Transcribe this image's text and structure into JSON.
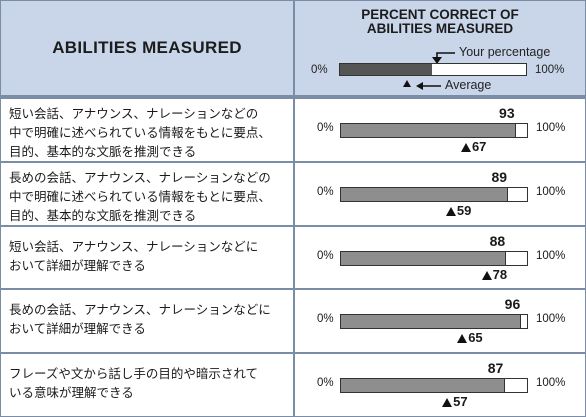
{
  "header": {
    "left_title": "ABILITIES MEASURED",
    "right_title_line1": "PERCENT CORRECT OF",
    "right_title_line2": "ABILITIES MEASURED"
  },
  "legend": {
    "min_label": "0%",
    "max_label": "100%",
    "your_percentage_label": "Your percentage",
    "average_label": "Average",
    "sample_fill": 0.49,
    "sample_marker": 0.36
  },
  "colors": {
    "header_bg": "#c9d6ea",
    "border": "#7a8ca6",
    "bar_fill": "#8e8e8e",
    "legend_fill": "#555555"
  },
  "rows": [
    {
      "desc_lines": [
        "短い会話、アナウンス、ナレーションなどの",
        "中で明確に述べられている情報をもとに要点、",
        "目的、基本的な文脈を推測できる"
      ]
    },
    {
      "desc_lines": [
        "長めの会話、アナウンス、ナレーションなどの",
        "中で明確に述べられている情報をもとに要点、",
        "目的、基本的な文脈を推測できる"
      ]
    },
    {
      "desc_lines": [
        "短い会話、アナウンス、ナレーションなどに",
        "おいて詳細が理解できる"
      ]
    },
    {
      "desc_lines": [
        "長めの会話、アナウンス、ナレーションなどに",
        "おいて詳細が理解できる"
      ]
    },
    {
      "desc_lines": [
        "フレーズや文から話し手の目的や暗示されて",
        "いる意味が理解できる"
      ]
    }
  ],
  "axis": {
    "min_label": "0%",
    "max_label": "100%"
  },
  "chart_data": {
    "type": "bar",
    "categories": [
      "短い会話、アナウンス、ナレーションなどの中で明確に述べられている情報をもとに要点、目的、基本的な文脈を推測できる",
      "長めの会話、アナウンス、ナレーションなどの中で明確に述べられている情報をもとに要点、目的、基本的な文脈を推測できる",
      "短い会話、アナウンス、ナレーションなどにおいて詳細が理解できる",
      "長めの会話、アナウンス、ナレーションなどにおいて詳細が理解できる",
      "フレーズや文から話し手の目的や暗示されている意味が理解できる"
    ],
    "series": [
      {
        "name": "Your percentage",
        "values": [
          93,
          89,
          88,
          96,
          87
        ]
      },
      {
        "name": "Average",
        "values": [
          67,
          59,
          78,
          65,
          57
        ]
      }
    ],
    "title": "PERCENT CORRECT OF ABILITIES MEASURED",
    "ylim": [
      0,
      100
    ]
  }
}
